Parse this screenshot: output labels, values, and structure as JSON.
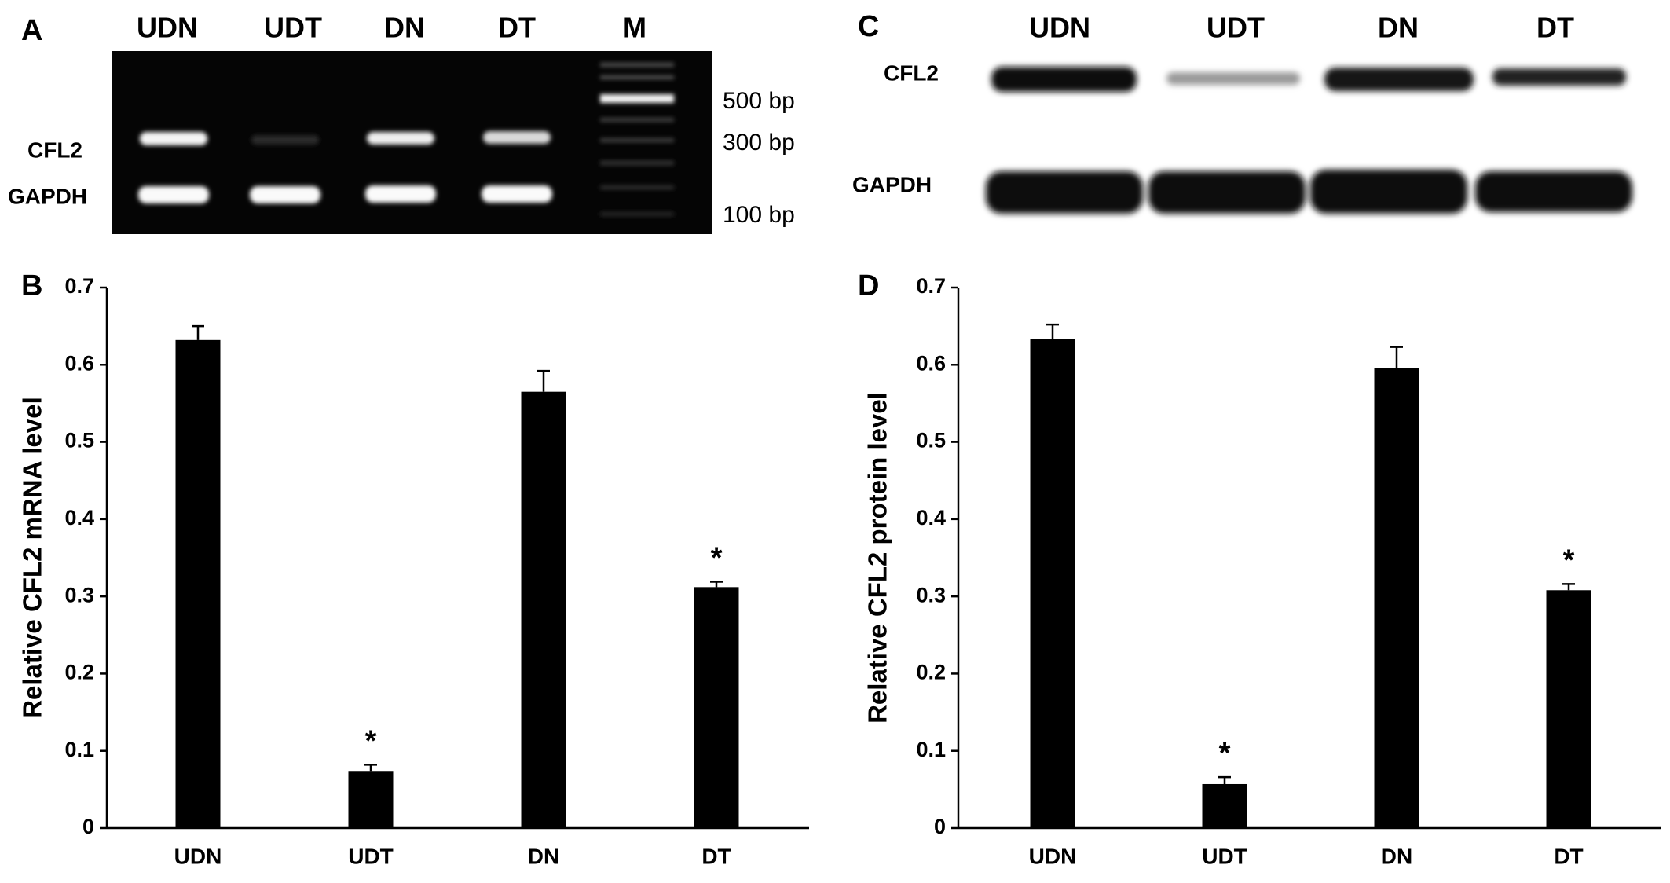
{
  "panels": [
    "A",
    "B",
    "C",
    "D"
  ],
  "gel": {
    "lanes": [
      "UDN",
      "UDT",
      "DN",
      "DT",
      "M"
    ],
    "rows": [
      "CFL2",
      "GAPDH"
    ],
    "markers": [
      "500 bp",
      "300 bp",
      "100 bp"
    ]
  },
  "western": {
    "lanes": [
      "UDN",
      "UDT",
      "DN",
      "DT"
    ],
    "rows": [
      "CFL2",
      "GAPDH"
    ]
  },
  "chart_data": [
    {
      "type": "bar",
      "ylabel": "Relative CFL2 mRNA level",
      "categories": [
        "UDN",
        "UDT",
        "DN",
        "DT"
      ],
      "values": [
        0.632,
        0.073,
        0.565,
        0.312
      ],
      "errors": [
        0.018,
        0.009,
        0.027,
        0.007
      ],
      "color": "#000000",
      "significant": [
        false,
        true,
        false,
        true
      ],
      "significance_marker": "*",
      "ylim": [
        0,
        0.7
      ],
      "yticks": [
        0,
        0.1,
        0.2,
        0.3,
        0.4,
        0.5,
        0.6,
        0.7
      ],
      "grid": false
    },
    {
      "type": "bar",
      "ylabel": "Relative CFL2 protein level",
      "categories": [
        "UDN",
        "UDT",
        "DN",
        "DT"
      ],
      "values": [
        0.633,
        0.057,
        0.596,
        0.308
      ],
      "errors": [
        0.019,
        0.009,
        0.027,
        0.008
      ],
      "color": "#000000",
      "significant": [
        false,
        true,
        false,
        true
      ],
      "significance_marker": "*",
      "ylim": [
        0,
        0.7
      ],
      "yticks": [
        0,
        0.1,
        0.2,
        0.3,
        0.4,
        0.5,
        0.6,
        0.7
      ],
      "grid": false
    }
  ]
}
